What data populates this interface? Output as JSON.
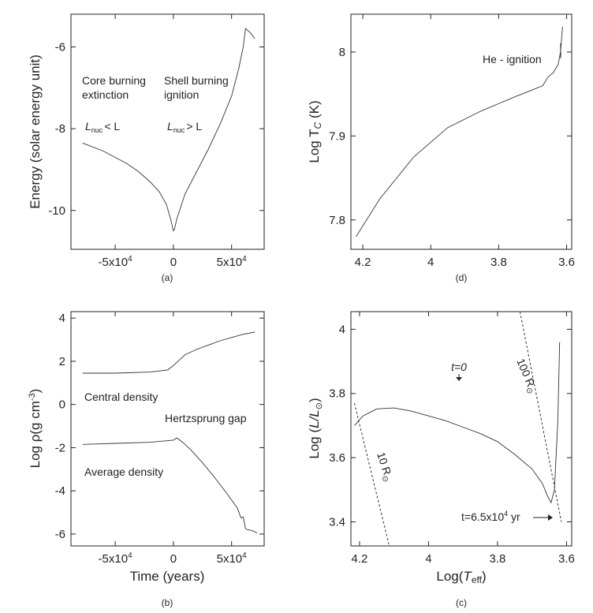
{
  "chart_data": [
    {
      "type": "line",
      "caption": "(a)",
      "ylabel": "Energy (solar energy unit)",
      "xlabel": "",
      "xticks": [
        {
          "v": -50000,
          "label": "-5x10",
          "exp": "4"
        },
        {
          "v": 0,
          "label": "0"
        },
        {
          "v": 50000,
          "label": "5x10",
          "exp": "4"
        }
      ],
      "yticks": [
        {
          "v": -6,
          "label": "-6"
        },
        {
          "v": -8,
          "label": "-8"
        },
        {
          "v": -10,
          "label": "-10"
        }
      ],
      "series": [
        {
          "x": [
            -78000,
            -60000,
            -40000,
            -30000,
            -20000,
            -12000,
            -6000,
            -2000,
            0,
            1000,
            3000,
            10000,
            20000,
            30000,
            40000,
            50000,
            56000,
            60000,
            62000,
            66000,
            70000
          ],
          "y": [
            -8.35,
            -8.55,
            -8.85,
            -9.05,
            -9.3,
            -9.55,
            -9.85,
            -10.25,
            -10.5,
            -10.45,
            -10.2,
            -9.6,
            -9.05,
            -8.5,
            -7.9,
            -7.2,
            -6.55,
            -6.0,
            -5.55,
            -5.65,
            -5.8
          ]
        }
      ],
      "annotations": [
        {
          "lines": [
            "Core burning",
            "extinction"
          ]
        },
        {
          "lines": [
            "Shell burning",
            "ignition"
          ]
        },
        {
          "sym": "L",
          "sub": "nuc",
          "rel": "< L"
        },
        {
          "sym": "L",
          "sub": "nuc",
          "rel": "> L"
        }
      ]
    },
    {
      "type": "line",
      "caption": "(d)",
      "ylabel": "Log T",
      "ylabel_sub": "C",
      "ylabel_unit": " (K)",
      "xticks": [
        {
          "v": 4.2,
          "label": "4.2"
        },
        {
          "v": 4.0,
          "label": "4"
        },
        {
          "v": 3.8,
          "label": "3.8"
        },
        {
          "v": 3.6,
          "label": "3.6"
        }
      ],
      "yticks": [
        {
          "v": 8.0,
          "label": "8"
        },
        {
          "v": 7.9,
          "label": "7.9"
        },
        {
          "v": 7.8,
          "label": "7.8"
        }
      ],
      "series": [
        {
          "x": [
            4.22,
            4.15,
            4.05,
            3.95,
            3.85,
            3.75,
            3.7,
            3.67,
            3.655,
            3.64,
            3.625,
            3.618,
            3.612
          ],
          "y": [
            7.78,
            7.825,
            7.875,
            7.91,
            7.93,
            7.947,
            7.955,
            7.96,
            7.97,
            7.975,
            7.985,
            8.0,
            8.03
          ]
        }
      ],
      "annotations": [
        {
          "text": "He - ignition"
        }
      ]
    },
    {
      "type": "line",
      "caption": "(b)",
      "xlabel": "Time (years)",
      "ylabel": "Log ρ(g cm",
      "ylabel_exp": "-3",
      "ylabel_tail": ")",
      "xticks": [
        {
          "v": -50000,
          "label": "-5x10",
          "exp": "4"
        },
        {
          "v": 0,
          "label": "0"
        },
        {
          "v": 50000,
          "label": "5x10",
          "exp": "4"
        }
      ],
      "yticks": [
        {
          "v": 4,
          "label": "4"
        },
        {
          "v": 2,
          "label": "2"
        },
        {
          "v": 0,
          "label": "0"
        },
        {
          "v": -2,
          "label": "-2"
        },
        {
          "v": -4,
          "label": "-4"
        },
        {
          "v": -6,
          "label": "-6"
        }
      ],
      "series": [
        {
          "name": "Central density",
          "x": [
            -78000,
            -50000,
            -20000,
            -5000,
            0,
            5000,
            10000,
            20000,
            30000,
            40000,
            50000,
            60000,
            70000
          ],
          "y": [
            1.45,
            1.45,
            1.5,
            1.6,
            1.8,
            2.05,
            2.3,
            2.55,
            2.75,
            2.95,
            3.1,
            3.25,
            3.35
          ]
        },
        {
          "name": "Average density",
          "x": [
            -78000,
            -50000,
            -20000,
            0,
            3000,
            8000,
            15000,
            25000,
            35000,
            45000,
            55000,
            58000,
            60000,
            62000,
            64000,
            68000,
            72000
          ],
          "y": [
            -1.85,
            -1.8,
            -1.75,
            -1.65,
            -1.55,
            -1.75,
            -2.1,
            -2.7,
            -3.35,
            -4.05,
            -4.8,
            -5.25,
            -5.2,
            -5.75,
            -5.8,
            -5.85,
            -5.95
          ]
        }
      ],
      "annotations": [
        {
          "text": "Central density"
        },
        {
          "text": "Hertzsprung gap"
        },
        {
          "text": "Average density"
        }
      ]
    },
    {
      "type": "line",
      "caption": "(c)",
      "xlabel_pre": "Log(",
      "xlabel_sym": "T",
      "xlabel_sub": "eff",
      "xlabel_post": ")",
      "ylabel_pre": "Log (",
      "ylabel_sym": "L/L",
      "ylabel_sub": "⊙",
      "ylabel_post": ")",
      "xticks": [
        {
          "v": 4.2,
          "label": "4.2"
        },
        {
          "v": 4.0,
          "label": "4"
        },
        {
          "v": 3.8,
          "label": "3.8"
        },
        {
          "v": 3.6,
          "label": "3.6"
        }
      ],
      "yticks": [
        {
          "v": 4.0,
          "label": "4"
        },
        {
          "v": 3.8,
          "label": "3.8"
        },
        {
          "v": 3.6,
          "label": "3.6"
        },
        {
          "v": 3.4,
          "label": "3.4"
        }
      ],
      "series": [
        {
          "x": [
            4.215,
            4.19,
            4.15,
            4.1,
            4.05,
            4.0,
            3.95,
            3.9,
            3.85,
            3.8,
            3.75,
            3.7,
            3.67,
            3.655,
            3.645,
            3.635,
            3.625,
            3.62
          ],
          "y": [
            3.7,
            3.73,
            3.752,
            3.755,
            3.745,
            3.73,
            3.715,
            3.695,
            3.675,
            3.65,
            3.61,
            3.565,
            3.52,
            3.48,
            3.46,
            3.5,
            3.72,
            3.96
          ]
        },
        {
          "name": "10 R",
          "x": [
            4.215,
            4.115
          ],
          "y": [
            3.77,
            3.33
          ]
        },
        {
          "name": "100 R",
          "x": [
            3.735,
            3.615
          ],
          "y": [
            4.055,
            3.4
          ]
        }
      ],
      "annotations": [
        {
          "text": "t=0"
        },
        {
          "text": "t=6.5x10",
          "exp": "4",
          "tail": " yr"
        },
        {
          "text": "100 R",
          "sub": "⊙"
        },
        {
          "text": "10 R",
          "sub": "⊙"
        }
      ]
    }
  ]
}
